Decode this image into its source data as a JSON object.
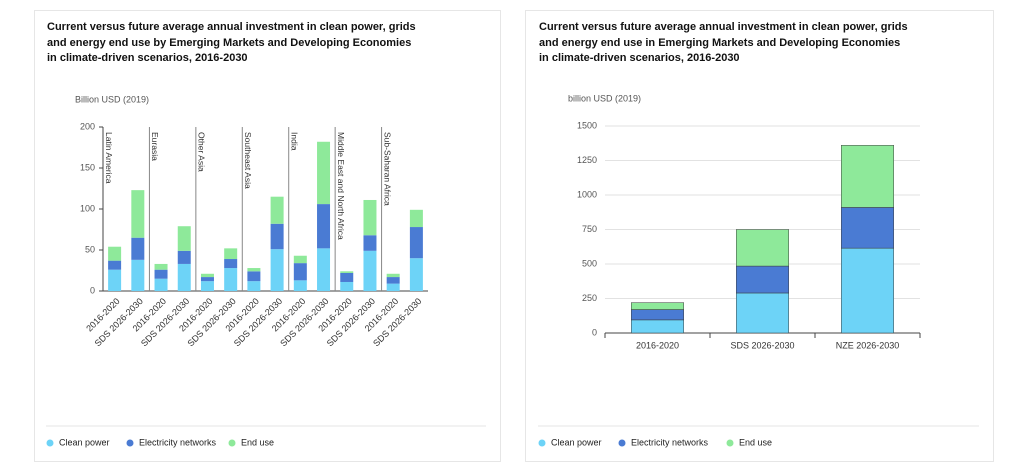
{
  "chart_data": [
    {
      "type": "bar",
      "stacked": true,
      "grid": false,
      "title": "Current versus future average annual investment in clean power, grids and energy end use by Emerging Markets and Developing Economies in climate-driven scenarios, 2016-2030",
      "y_label": "Billion USD (2019)",
      "groups": [
        "Latin America",
        "Eurasia",
        "Other Asia",
        "Southeast Asia",
        "India",
        "Middle East and North Africa",
        "Sub-Saharan Africa"
      ],
      "categories": [
        "2016-2020",
        "SDS 2026-2030",
        "2016-2020",
        "SDS 2026-2030",
        "2016-2020",
        "SDS 2026-2030",
        "2016-2020",
        "SDS 2026-2030",
        "2016-2020",
        "SDS 2026-2030",
        "2016-2020",
        "SDS 2026-2030",
        "2016-2020",
        "SDS 2026-2030"
      ],
      "ylim": [
        0,
        200
      ],
      "yticks": [
        0,
        50,
        100,
        150,
        200
      ],
      "series": [
        {
          "name": "Clean power",
          "color": "#6dd3f7",
          "values": [
            26,
            38,
            15,
            33,
            12,
            28,
            12,
            51,
            13,
            52,
            11,
            49,
            9,
            40
          ]
        },
        {
          "name": "Electricity networks",
          "color": "#4a7bd3",
          "values": [
            11,
            27,
            11,
            16,
            5,
            11,
            12,
            31,
            21,
            54,
            11,
            19,
            8,
            38
          ]
        },
        {
          "name": "End use",
          "color": "#8ee99a",
          "values": [
            17,
            58,
            7,
            30,
            4,
            13,
            4,
            33,
            9,
            76,
            2,
            43,
            4,
            21
          ]
        }
      ]
    },
    {
      "type": "bar",
      "stacked": true,
      "grid": true,
      "title": "Current versus future average annual investment in clean power, grids and energy end use in Emerging Markets and Developing Economies in climate-driven scenarios, 2016-2030",
      "y_label": "billion USD (2019)",
      "categories": [
        "2016-2020",
        "SDS 2026-2030",
        "NZE 2026-2030"
      ],
      "ylim": [
        0,
        1500
      ],
      "yticks": [
        0,
        250,
        500,
        750,
        1000,
        1250,
        1500
      ],
      "series": [
        {
          "name": "Clean power",
          "color": "#6dd3f7",
          "values": [
            95,
            290,
            615
          ]
        },
        {
          "name": "Electricity networks",
          "color": "#4a7bd3",
          "values": [
            75,
            195,
            295
          ]
        },
        {
          "name": "End use",
          "color": "#8ee99a",
          "values": [
            50,
            265,
            450
          ]
        }
      ]
    }
  ]
}
